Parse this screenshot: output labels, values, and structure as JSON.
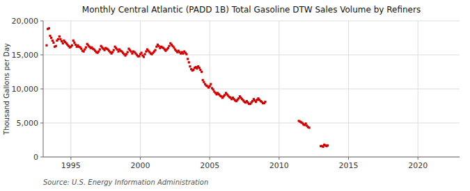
{
  "chart_data": {
    "type": "scatter",
    "title": "Monthly Central Atlantic (PADD 1B) Total Gasoline DTW Sales Volume by Refiners",
    "ylabel": "Thousand Gallons per Day",
    "source": "Source: U.S. Energy Information Administration",
    "color": "#cc0000",
    "marker": "square",
    "grid": true,
    "xlim": [
      1993.0,
      2023.0
    ],
    "ylim": [
      0,
      20000
    ],
    "xticks": [
      1995,
      2000,
      2005,
      2010,
      2015,
      2020
    ],
    "yticks": [
      0,
      {
        "value": 5000,
        "label": "5,000"
      },
      {
        "value": 10000,
        "label": "10,000"
      },
      {
        "value": 15000,
        "label": "15,000"
      },
      {
        "value": 20000,
        "label": "20,000"
      }
    ],
    "x": [
      1993.25,
      1993.33,
      1993.42,
      1993.5,
      1993.58,
      1993.67,
      1993.75,
      1993.83,
      1993.92,
      1994.0,
      1994.08,
      1994.17,
      1994.25,
      1994.33,
      1994.42,
      1994.5,
      1994.58,
      1994.67,
      1994.75,
      1994.83,
      1994.92,
      1995.0,
      1995.08,
      1995.17,
      1995.25,
      1995.33,
      1995.42,
      1995.5,
      1995.58,
      1995.67,
      1995.75,
      1995.83,
      1995.92,
      1996.0,
      1996.08,
      1996.17,
      1996.25,
      1996.33,
      1996.42,
      1996.5,
      1996.58,
      1996.67,
      1996.75,
      1996.83,
      1996.92,
      1997.0,
      1997.08,
      1997.17,
      1997.25,
      1997.33,
      1997.42,
      1997.5,
      1997.58,
      1997.67,
      1997.75,
      1997.83,
      1997.92,
      1998.0,
      1998.08,
      1998.17,
      1998.25,
      1998.33,
      1998.42,
      1998.5,
      1998.58,
      1998.67,
      1998.75,
      1998.83,
      1998.92,
      1999.0,
      1999.08,
      1999.17,
      1999.25,
      1999.33,
      1999.42,
      1999.5,
      1999.58,
      1999.67,
      1999.75,
      1999.83,
      1999.92,
      2000.0,
      2000.08,
      2000.17,
      2000.25,
      2000.33,
      2000.42,
      2000.5,
      2000.58,
      2000.67,
      2000.75,
      2000.83,
      2000.92,
      2001.0,
      2001.08,
      2001.17,
      2001.25,
      2001.33,
      2001.42,
      2001.5,
      2001.58,
      2001.67,
      2001.75,
      2001.83,
      2001.92,
      2002.0,
      2002.08,
      2002.17,
      2002.25,
      2002.33,
      2002.42,
      2002.5,
      2002.58,
      2002.67,
      2002.75,
      2002.83,
      2002.92,
      2003.0,
      2003.08,
      2003.17,
      2003.25,
      2003.33,
      2003.42,
      2003.5,
      2003.58,
      2003.67,
      2003.75,
      2003.83,
      2003.92,
      2004.0,
      2004.08,
      2004.17,
      2004.25,
      2004.33,
      2004.42,
      2004.5,
      2004.58,
      2004.67,
      2004.75,
      2004.83,
      2004.92,
      2005.0,
      2005.08,
      2005.17,
      2005.25,
      2005.33,
      2005.42,
      2005.5,
      2005.58,
      2005.67,
      2005.75,
      2005.83,
      2005.92,
      2006.0,
      2006.08,
      2006.17,
      2006.25,
      2006.33,
      2006.42,
      2006.5,
      2006.58,
      2006.67,
      2006.75,
      2006.83,
      2006.92,
      2007.0,
      2007.08,
      2007.17,
      2007.25,
      2007.33,
      2007.42,
      2007.5,
      2007.58,
      2007.67,
      2007.75,
      2007.83,
      2007.92,
      2008.0,
      2008.08,
      2008.17,
      2008.25,
      2008.33,
      2008.42,
      2008.5,
      2008.58,
      2008.67,
      2008.75,
      2008.83,
      2008.92,
      2009.0,
      2011.42,
      2011.5,
      2011.58,
      2011.67,
      2011.75,
      2011.83,
      2011.92,
      2012.0,
      2012.08,
      2012.17,
      2013.0,
      2013.08,
      2013.17,
      2013.25,
      2013.33,
      2013.42,
      2013.5
    ],
    "values": [
      16400,
      18800,
      18900,
      17800,
      17500,
      17100,
      16800,
      16200,
      16300,
      17100,
      17300,
      17700,
      17300,
      17000,
      16700,
      17100,
      16900,
      16700,
      16500,
      16300,
      16100,
      16200,
      16400,
      17100,
      16800,
      16500,
      16200,
      16400,
      16200,
      16100,
      15900,
      15600,
      15500,
      15800,
      16100,
      16600,
      16400,
      16200,
      16000,
      16100,
      15900,
      15800,
      15600,
      15400,
      15300,
      15500,
      15800,
      16300,
      16100,
      15900,
      15700,
      16000,
      15900,
      15800,
      15600,
      15400,
      15200,
      15400,
      15700,
      16200,
      16000,
      15800,
      15500,
      15800,
      15600,
      15500,
      15300,
      15100,
      14900,
      15100,
      15400,
      15900,
      15700,
      15500,
      15200,
      15500,
      15400,
      15200,
      15000,
      14800,
      14800,
      15100,
      15300,
      14900,
      14700,
      15100,
      15500,
      15800,
      15600,
      15400,
      15200,
      15100,
      15300,
      15500,
      15700,
      16200,
      16500,
      16300,
      16000,
      16200,
      16100,
      16000,
      15800,
      15600,
      15800,
      16000,
      16300,
      16700,
      16500,
      16300,
      16100,
      15800,
      15600,
      15400,
      15600,
      15400,
      15200,
      15400,
      15200,
      15500,
      15300,
      15100,
      14400,
      13900,
      13300,
      12900,
      12700,
      12800,
      13100,
      13200,
      13000,
      13300,
      13100,
      12800,
      12500,
      11300,
      11000,
      10700,
      10500,
      10400,
      10200,
      10400,
      10700,
      10100,
      9900,
      9600,
      9400,
      9200,
      9400,
      9200,
      9000,
      8900,
      8700,
      8900,
      9100,
      9400,
      9200,
      9000,
      8800,
      8700,
      8500,
      8700,
      8500,
      8300,
      8200,
      8400,
      8600,
      8900,
      8700,
      8500,
      8300,
      8100,
      8000,
      8200,
      8000,
      7800,
      7800,
      8000,
      8200,
      8500,
      8300,
      8100,
      8400,
      8600,
      8400,
      8200,
      8100,
      7900,
      7900,
      8100,
      5300,
      5200,
      5100,
      5000,
      4800,
      4700,
      4900,
      4600,
      4400,
      4300,
      1600,
      1600,
      1500,
      1800,
      1700,
      1600,
      1700
    ]
  }
}
